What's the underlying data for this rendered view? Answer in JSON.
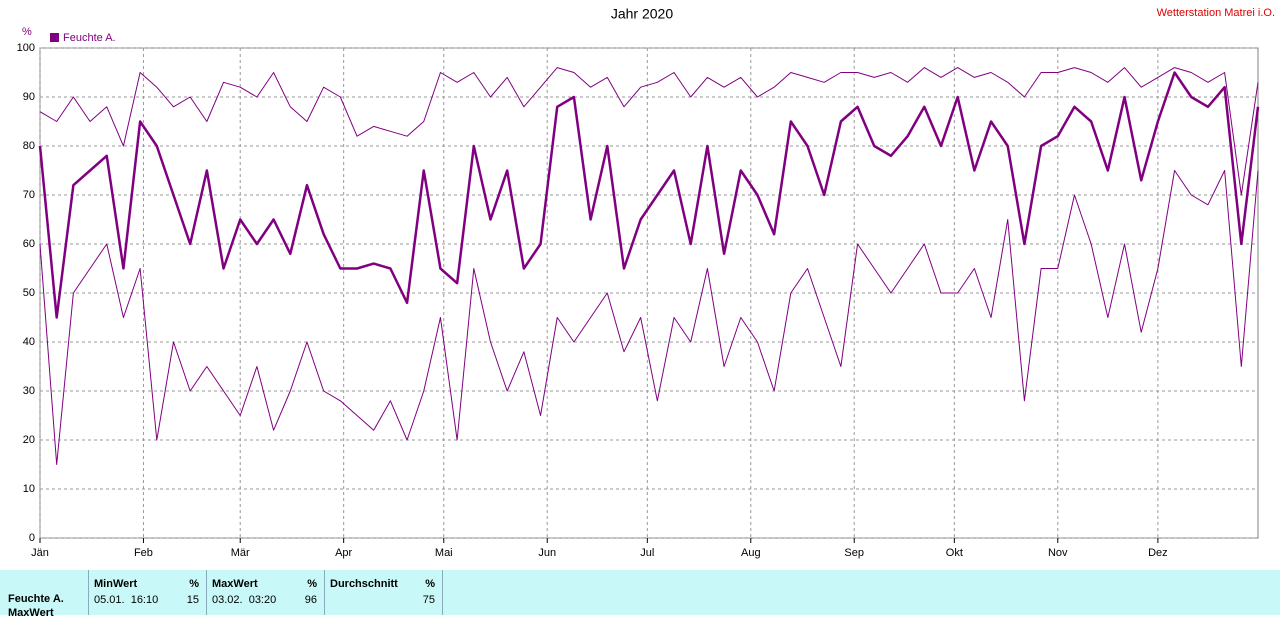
{
  "chart_data": {
    "type": "line",
    "title": "Jahr 2020",
    "station": "Wetterstation Matrei i.O.",
    "y_unit": "%",
    "xlim": [
      1,
      366
    ],
    "ylim": [
      0,
      100
    ],
    "yticks": [
      0,
      10,
      20,
      30,
      40,
      50,
      60,
      70,
      80,
      90,
      100
    ],
    "xticks": [
      {
        "value": 1,
        "label": "Jän"
      },
      {
        "value": 32,
        "label": "Feb"
      },
      {
        "value": 61,
        "label": "Mär"
      },
      {
        "value": 92,
        "label": "Apr"
      },
      {
        "value": 122,
        "label": "Mai"
      },
      {
        "value": 153,
        "label": "Jun"
      },
      {
        "value": 183,
        "label": "Jul"
      },
      {
        "value": 214,
        "label": "Aug"
      },
      {
        "value": 245,
        "label": "Sep"
      },
      {
        "value": 275,
        "label": "Okt"
      },
      {
        "value": 306,
        "label": "Nov"
      },
      {
        "value": 336,
        "label": "Dez"
      }
    ],
    "grid": true,
    "x": [
      1,
      6,
      11,
      16,
      21,
      26,
      31,
      36,
      41,
      46,
      51,
      56,
      61,
      66,
      71,
      76,
      81,
      86,
      91,
      96,
      101,
      106,
      111,
      116,
      121,
      126,
      131,
      136,
      141,
      146,
      151,
      156,
      161,
      166,
      171,
      176,
      181,
      186,
      191,
      196,
      201,
      206,
      211,
      216,
      221,
      226,
      231,
      236,
      241,
      246,
      251,
      256,
      261,
      266,
      271,
      276,
      281,
      286,
      291,
      296,
      301,
      306,
      311,
      316,
      321,
      326,
      331,
      336,
      341,
      346,
      351,
      356,
      361,
      366
    ],
    "series": [
      {
        "color": "#800080",
        "width": 1,
        "values": [
          87,
          85,
          90,
          85,
          88,
          80,
          95,
          92,
          88,
          90,
          85,
          93,
          92,
          90,
          95,
          88,
          85,
          92,
          90,
          82,
          84,
          83,
          82,
          85,
          95,
          93,
          95,
          90,
          94,
          88,
          92,
          96,
          95,
          92,
          94,
          88,
          92,
          93,
          95,
          90,
          94,
          92,
          94,
          90,
          92,
          95,
          94,
          93,
          95,
          95,
          94,
          95,
          93,
          96,
          94,
          96,
          94,
          95,
          93,
          90,
          95,
          95,
          96,
          95,
          93,
          96,
          92,
          94,
          96,
          95,
          93,
          95,
          70,
          93
        ]
      },
      {
        "name": "Feuchte A.",
        "color": "#800080",
        "width": 2.5,
        "values": [
          80,
          45,
          72,
          75,
          78,
          55,
          85,
          80,
          70,
          60,
          75,
          55,
          65,
          60,
          65,
          58,
          72,
          62,
          55,
          55,
          56,
          55,
          48,
          75,
          55,
          52,
          80,
          65,
          75,
          55,
          60,
          88,
          90,
          65,
          80,
          55,
          65,
          70,
          75,
          60,
          80,
          58,
          75,
          70,
          62,
          85,
          80,
          70,
          85,
          88,
          80,
          78,
          82,
          88,
          80,
          90,
          75,
          85,
          80,
          60,
          80,
          82,
          88,
          85,
          75,
          90,
          73,
          85,
          95,
          90,
          88,
          92,
          60,
          88
        ]
      },
      {
        "color": "#800080",
        "width": 1,
        "values": [
          60,
          15,
          50,
          55,
          60,
          45,
          55,
          20,
          40,
          30,
          35,
          30,
          25,
          35,
          22,
          30,
          40,
          30,
          28,
          25,
          22,
          28,
          20,
          30,
          45,
          20,
          55,
          40,
          30,
          38,
          25,
          45,
          40,
          45,
          50,
          38,
          45,
          28,
          45,
          40,
          55,
          35,
          45,
          40,
          30,
          50,
          55,
          45,
          35,
          60,
          55,
          50,
          55,
          60,
          50,
          50,
          55,
          45,
          65,
          28,
          55,
          55,
          70,
          60,
          45,
          60,
          42,
          55,
          75,
          70,
          68,
          75,
          35,
          75
        ]
      }
    ]
  },
  "table": {
    "row_label": "Feuchte A.",
    "next_row": "MaxWert",
    "columns": [
      {
        "head": "MinWert",
        "unit": "%",
        "time": "05.01.  16:10",
        "value": "15"
      },
      {
        "head": "MaxWert",
        "unit": "%",
        "time": "03.02.  03:20",
        "value": "96"
      },
      {
        "head": "Durchschnitt",
        "unit": "%",
        "time": "",
        "value": "75"
      }
    ]
  }
}
